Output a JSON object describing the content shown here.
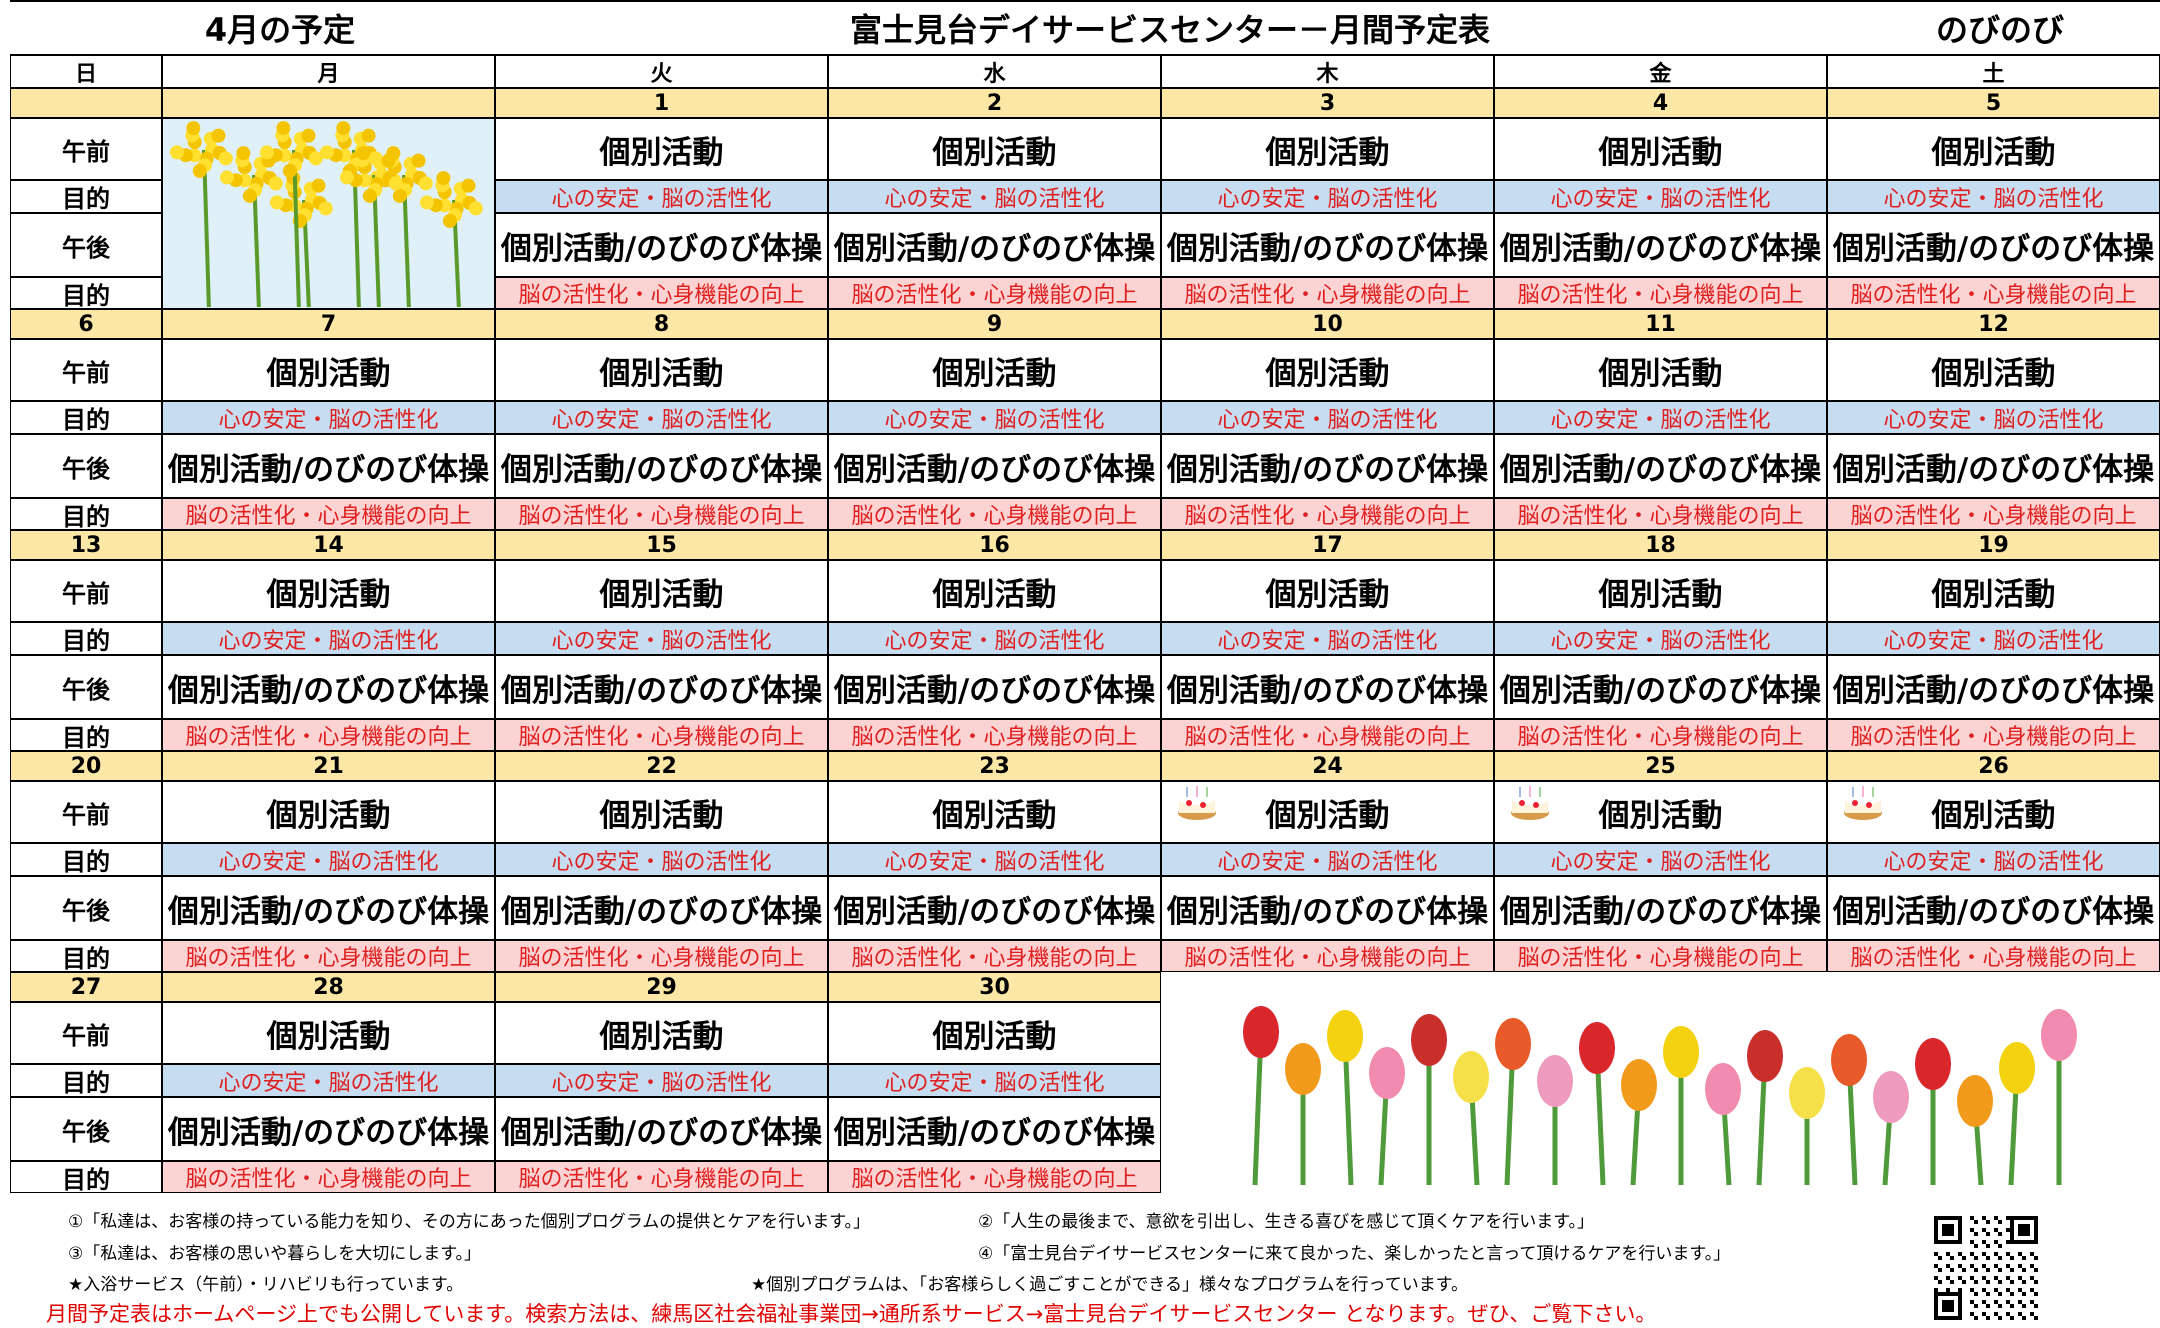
{
  "header": {
    "month": "4月の予定",
    "title": "富士見台デイサービスセンター－月間予定表",
    "unit": "のびのび"
  },
  "weekdays": [
    "日",
    "月",
    "火",
    "水",
    "木",
    "金",
    "土"
  ],
  "row_labels": [
    "午前",
    "目的",
    "午後",
    "目的"
  ],
  "weeks": [
    {
      "sunday": null,
      "days": [
        null,
        {
          "date": "1",
          "am": "個別活動",
          "am_goal": "心の安定・脳の活性化",
          "pm": "個別活動/のびのび体操",
          "pm_goal": "脳の活性化・心身機能の向上"
        },
        {
          "date": "2",
          "am": "個別活動",
          "am_goal": "心の安定・脳の活性化",
          "pm": "個別活動/のびのび体操",
          "pm_goal": "脳の活性化・心身機能の向上"
        },
        {
          "date": "3",
          "am": "個別活動",
          "am_goal": "心の安定・脳の活性化",
          "pm": "個別活動/のびのび体操",
          "pm_goal": "脳の活性化・心身機能の向上"
        },
        {
          "date": "4",
          "am": "個別活動",
          "am_goal": "心の安定・脳の活性化",
          "pm": "個別活動/のびのび体操",
          "pm_goal": "脳の活性化・心身機能の向上"
        },
        {
          "date": "5",
          "am": "個別活動",
          "am_goal": "心の安定・脳の活性化",
          "pm": "個別活動/のびのび体操",
          "pm_goal": "脳の活性化・心身機能の向上"
        }
      ]
    },
    {
      "sunday": "6",
      "days": [
        {
          "date": "7",
          "am": "個別活動",
          "am_goal": "心の安定・脳の活性化",
          "pm": "個別活動/のびのび体操",
          "pm_goal": "脳の活性化・心身機能の向上"
        },
        {
          "date": "8",
          "am": "個別活動",
          "am_goal": "心の安定・脳の活性化",
          "pm": "個別活動/のびのび体操",
          "pm_goal": "脳の活性化・心身機能の向上"
        },
        {
          "date": "9",
          "am": "個別活動",
          "am_goal": "心の安定・脳の活性化",
          "pm": "個別活動/のびのび体操",
          "pm_goal": "脳の活性化・心身機能の向上"
        },
        {
          "date": "10",
          "am": "個別活動",
          "am_goal": "心の安定・脳の活性化",
          "pm": "個別活動/のびのび体操",
          "pm_goal": "脳の活性化・心身機能の向上"
        },
        {
          "date": "11",
          "am": "個別活動",
          "am_goal": "心の安定・脳の活性化",
          "pm": "個別活動/のびのび体操",
          "pm_goal": "脳の活性化・心身機能の向上"
        },
        {
          "date": "12",
          "am": "個別活動",
          "am_goal": "心の安定・脳の活性化",
          "pm": "個別活動/のびのび体操",
          "pm_goal": "脳の活性化・心身機能の向上"
        }
      ]
    },
    {
      "sunday": "13",
      "days": [
        {
          "date": "14",
          "am": "個別活動",
          "am_goal": "心の安定・脳の活性化",
          "pm": "個別活動/のびのび体操",
          "pm_goal": "脳の活性化・心身機能の向上"
        },
        {
          "date": "15",
          "am": "個別活動",
          "am_goal": "心の安定・脳の活性化",
          "pm": "個別活動/のびのび体操",
          "pm_goal": "脳の活性化・心身機能の向上"
        },
        {
          "date": "16",
          "am": "個別活動",
          "am_goal": "心の安定・脳の活性化",
          "pm": "個別活動/のびのび体操",
          "pm_goal": "脳の活性化・心身機能の向上"
        },
        {
          "date": "17",
          "am": "個別活動",
          "am_goal": "心の安定・脳の活性化",
          "pm": "個別活動/のびのび体操",
          "pm_goal": "脳の活性化・心身機能の向上"
        },
        {
          "date": "18",
          "am": "個別活動",
          "am_goal": "心の安定・脳の活性化",
          "pm": "個別活動/のびのび体操",
          "pm_goal": "脳の活性化・心身機能の向上"
        },
        {
          "date": "19",
          "am": "個別活動",
          "am_goal": "心の安定・脳の活性化",
          "pm": "個別活動/のびのび体操",
          "pm_goal": "脳の活性化・心身機能の向上"
        }
      ]
    },
    {
      "sunday": "20",
      "days": [
        {
          "date": "21",
          "am": "個別活動",
          "am_goal": "心の安定・脳の活性化",
          "pm": "個別活動/のびのび体操",
          "pm_goal": "脳の活性化・心身機能の向上"
        },
        {
          "date": "22",
          "am": "個別活動",
          "am_goal": "心の安定・脳の活性化",
          "pm": "個別活動/のびのび体操",
          "pm_goal": "脳の活性化・心身機能の向上"
        },
        {
          "date": "23",
          "am": "個別活動",
          "am_goal": "心の安定・脳の活性化",
          "pm": "個別活動/のびのび体操",
          "pm_goal": "脳の活性化・心身機能の向上"
        },
        {
          "date": "24",
          "am": "個別活動",
          "am_goal": "心の安定・脳の活性化",
          "pm": "個別活動/のびのび体操",
          "pm_goal": "脳の活性化・心身機能の向上"
        },
        {
          "date": "25",
          "am": "個別活動",
          "am_goal": "心の安定・脳の活性化",
          "pm": "個別活動/のびのび体操",
          "pm_goal": "脳の活性化・心身機能の向上"
        },
        {
          "date": "26",
          "am": "個別活動",
          "am_goal": "心の安定・脳の活性化",
          "pm": "個別活動/のびのび体操",
          "pm_goal": "脳の活性化・心身機能の向上"
        }
      ]
    },
    {
      "sunday": "27",
      "days": [
        {
          "date": "28",
          "am": "個別活動",
          "am_goal": "心の安定・脳の活性化",
          "pm": "個別活動/のびのび体操",
          "pm_goal": "脳の活性化・心身機能の向上"
        },
        {
          "date": "29",
          "am": "個別活動",
          "am_goal": "心の安定・脳の活性化",
          "pm": "個別活動/のびのび体操",
          "pm_goal": "脳の活性化・心身機能の向上"
        },
        {
          "date": "30",
          "am": "個別活動",
          "am_goal": "心の安定・脳の活性化",
          "pm": "個別活動/のびのび体操",
          "pm_goal": "脳の活性化・心身機能の向上"
        },
        null,
        null,
        null
      ]
    }
  ],
  "footer": {
    "notes": [
      "①「私達は、お客様の持っている能力を知り、その方にあった個別プログラムの提供とケアを行います。」",
      "②「人生の最後まで、意欲を引出し、生きる喜びを感じて頂くケアを行います。」",
      "③「私達は、お客様の思いや暮らしを大切にします。」",
      "④「富士見台デイサービスセンターに来て良かった、楽しかったと言って頂けるケアを行います。」"
    ],
    "stars": [
      "★入浴サービス（午前）・リハビリも行っています。",
      "★個別プログラムは、「お客様らしく過ごすことができる」様々なプログラムを行っています。"
    ],
    "notice": "月間予定表はホームページ上でも公開しています。検索方法は、練馬区社会福祉事業団→通所系サービス→富士見台デイサービスセンター となります。ぜひ、ご覧下さい。"
  }
}
